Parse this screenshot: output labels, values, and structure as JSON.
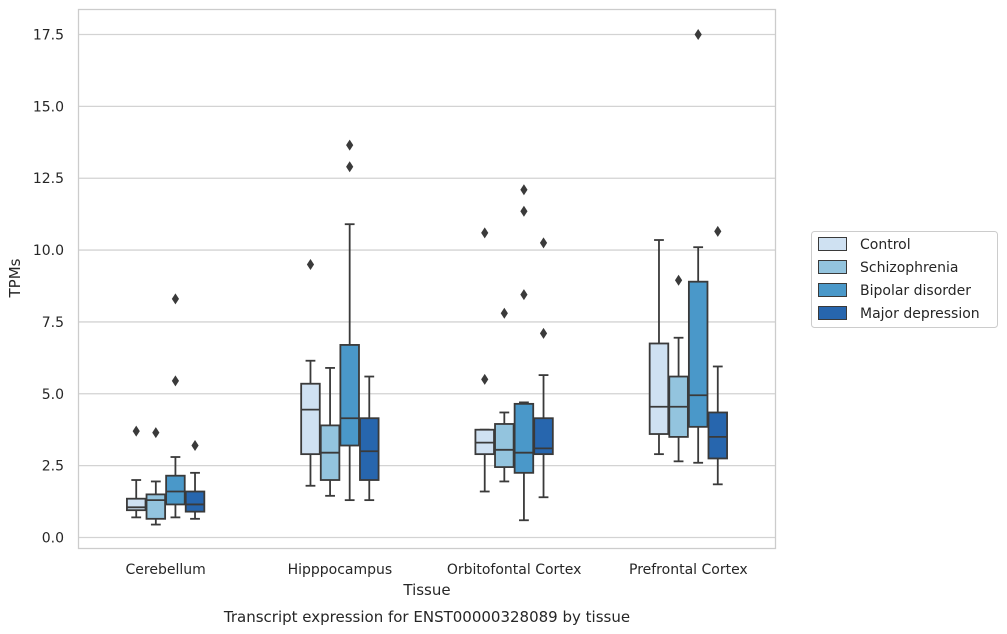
{
  "chart_data": {
    "type": "box",
    "title": "",
    "caption": "Transcript expression for ENST00000328089 by tissue",
    "xlabel": "Tissue",
    "ylabel": "TPMs",
    "ylim": [
      -0.35,
      18.4
    ],
    "yticks": [
      0.0,
      2.5,
      5.0,
      7.5,
      10.0,
      12.5,
      15.0,
      17.5
    ],
    "ytick_labels": [
      "0.0",
      "2.5",
      "5.0",
      "7.5",
      "10.0",
      "12.5",
      "15.0",
      "17.5"
    ],
    "grid": "horizontal",
    "legend_position": "right",
    "categories": [
      "Cerebellum",
      "Hipppocampus",
      "Orbitofontal Cortex",
      "Prefrontal Cortex"
    ],
    "series": [
      {
        "name": "Control",
        "color": "#cfe1f2",
        "boxes": [
          {
            "whislo": 0.7,
            "q1": 0.95,
            "med": 1.05,
            "q3": 1.35,
            "whishi": 2.0,
            "fliers": [
              3.7
            ]
          },
          {
            "whislo": 1.8,
            "q1": 2.9,
            "med": 4.45,
            "q3": 5.35,
            "whishi": 6.15,
            "fliers": [
              9.5
            ]
          },
          {
            "whislo": 1.6,
            "q1": 2.9,
            "med": 3.3,
            "q3": 3.75,
            "whishi": 3.75,
            "fliers": [
              5.5,
              10.6
            ]
          },
          {
            "whislo": 2.9,
            "q1": 3.6,
            "med": 4.55,
            "q3": 6.75,
            "whishi": 10.35,
            "fliers": []
          }
        ]
      },
      {
        "name": "Schizophrenia",
        "color": "#93c4de",
        "boxes": [
          {
            "whislo": 0.45,
            "q1": 0.65,
            "med": 1.3,
            "q3": 1.5,
            "whishi": 1.95,
            "fliers": [
              3.65
            ]
          },
          {
            "whislo": 1.45,
            "q1": 2.0,
            "med": 2.95,
            "q3": 3.9,
            "whishi": 5.9,
            "fliers": []
          },
          {
            "whislo": 1.95,
            "q1": 2.45,
            "med": 3.05,
            "q3": 3.95,
            "whishi": 4.35,
            "fliers": [
              7.8
            ]
          },
          {
            "whislo": 2.65,
            "q1": 3.5,
            "med": 4.55,
            "q3": 5.6,
            "whishi": 6.95,
            "fliers": [
              8.95
            ]
          }
        ]
      },
      {
        "name": "Bipolar disorder",
        "color": "#4a98c9",
        "boxes": [
          {
            "whislo": 0.7,
            "q1": 1.15,
            "med": 1.6,
            "q3": 2.15,
            "whishi": 2.8,
            "fliers": [
              5.45,
              8.3
            ]
          },
          {
            "whislo": 1.3,
            "q1": 3.2,
            "med": 4.15,
            "q3": 6.7,
            "whishi": 10.9,
            "fliers": [
              12.9,
              13.65
            ]
          },
          {
            "whislo": 0.6,
            "q1": 2.25,
            "med": 2.95,
            "q3": 4.65,
            "whishi": 4.7,
            "fliers": [
              8.45,
              11.35,
              12.1
            ]
          },
          {
            "whislo": 2.6,
            "q1": 3.85,
            "med": 4.95,
            "q3": 8.9,
            "whishi": 10.1,
            "fliers": [
              17.5
            ]
          }
        ]
      },
      {
        "name": "Major depression",
        "color": "#2766ae",
        "boxes": [
          {
            "whislo": 0.65,
            "q1": 0.9,
            "med": 1.15,
            "q3": 1.6,
            "whishi": 2.25,
            "fliers": [
              3.2
            ]
          },
          {
            "whislo": 1.3,
            "q1": 2.0,
            "med": 3.0,
            "q3": 4.15,
            "whishi": 5.6,
            "fliers": []
          },
          {
            "whislo": 1.4,
            "q1": 2.9,
            "med": 3.1,
            "q3": 4.15,
            "whishi": 5.65,
            "fliers": [
              7.1,
              10.25
            ]
          },
          {
            "whislo": 1.85,
            "q1": 2.75,
            "med": 3.5,
            "q3": 4.35,
            "whishi": 5.95,
            "fliers": [
              10.65
            ]
          }
        ]
      }
    ]
  }
}
